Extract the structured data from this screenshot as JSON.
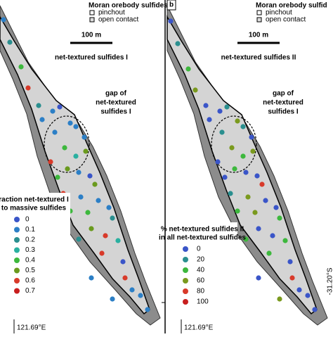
{
  "panels": [
    {
      "header": "Moran orebody sulfides:",
      "pinchout": "pinchout",
      "open_contact": "open contact",
      "scale": "100 m",
      "title": "net-textured sulfides I",
      "gap": [
        "gap of",
        "net-textured",
        "sulfides I"
      ],
      "legend_title": [
        "raction net-textured I",
        "to massive sulfides"
      ],
      "legend": [
        {
          "label": "0",
          "color": "#3a55c8"
        },
        {
          "label": "0.1",
          "color": "#2c7fc6"
        },
        {
          "label": "0.2",
          "color": "#2a8f8f"
        },
        {
          "label": "0.3",
          "color": "#2ab0a0"
        },
        {
          "label": "0.4",
          "color": "#3db83d"
        },
        {
          "label": "0.5",
          "color": "#6a9a1e"
        },
        {
          "label": "0.6",
          "color": "#d83a2a"
        },
        {
          "label": "0.7",
          "color": "#c81e1e"
        }
      ],
      "longitude": "121.69°E"
    },
    {
      "letter": "b",
      "header": "Moran orebody sulfid",
      "pinchout": "pinchout",
      "open_contact": "open contact",
      "scale": "100 m",
      "title": "net-textured sulfides II",
      "gap": [
        "gap of",
        "net-textured",
        "sulfides I"
      ],
      "legend_title": [
        "% net-textured sulfides II",
        "in all net-textured sulfides"
      ],
      "legend": [
        {
          "label": "0",
          "color": "#3a55c8"
        },
        {
          "label": "20",
          "color": "#2a8f8f"
        },
        {
          "label": "40",
          "color": "#3db83d"
        },
        {
          "label": "60",
          "color": "#7a9a1e"
        },
        {
          "label": "80",
          "color": "#d83a2a"
        },
        {
          "label": "100",
          "color": "#c81e1e"
        }
      ],
      "latitude": "-31.20°S",
      "longitude": "121.69°E"
    }
  ]
}
